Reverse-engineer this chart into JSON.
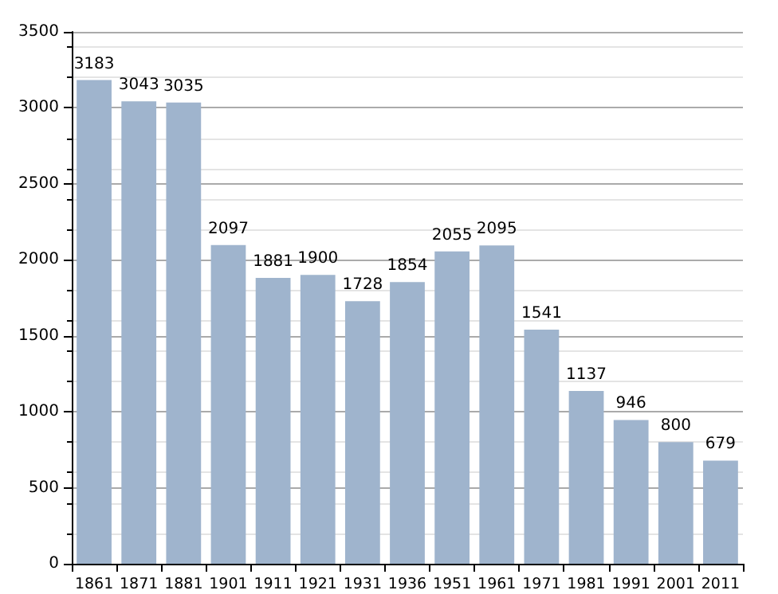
{
  "chart_data": {
    "type": "bar",
    "categories": [
      "1861",
      "1871",
      "1881",
      "1901",
      "1911",
      "1921",
      "1931",
      "1936",
      "1951",
      "1961",
      "1971",
      "1981",
      "1991",
      "2001",
      "2011"
    ],
    "values": [
      3183,
      3043,
      3035,
      2097,
      1881,
      1900,
      1728,
      1854,
      2055,
      2095,
      1541,
      1137,
      946,
      800,
      679
    ],
    "color": "#9fb4cd",
    "ylim": [
      0,
      3500
    ],
    "yticks": [
      0,
      500,
      1000,
      1500,
      2000,
      2500,
      3000,
      3500
    ],
    "grid": "y",
    "data_labels": true
  }
}
